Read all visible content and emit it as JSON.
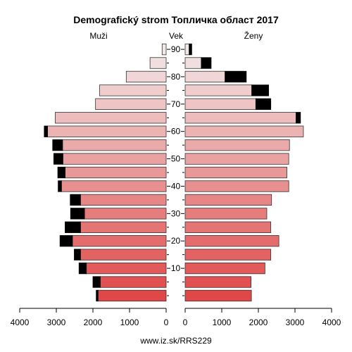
{
  "chart_data": {
    "type": "bar",
    "subtype": "population-pyramid",
    "title": "Demografický strom Топличка област 2017",
    "left_label": "Muži",
    "center_label": "Vek",
    "right_label": "Ženy",
    "source": "www.iz.sk/RRS229",
    "x_range": [
      0,
      4000
    ],
    "x_ticks": [
      4000,
      3000,
      2000,
      1000,
      0,
      1000,
      2000,
      3000,
      4000
    ],
    "age_ticks": [
      "10",
      "20",
      "30",
      "40",
      "50",
      "60",
      "70",
      "80",
      "90"
    ],
    "age_groups": [
      "0-4",
      "5-9",
      "10-14",
      "15-19",
      "20-24",
      "25-29",
      "30-34",
      "35-39",
      "40-44",
      "45-49",
      "50-54",
      "55-59",
      "60-64",
      "65-69",
      "70-74",
      "75-79",
      "80-84",
      "85-89",
      "90+"
    ],
    "series": [
      {
        "name": "Muži",
        "values": [
          1860,
          1800,
          2180,
          2340,
          2560,
          2340,
          2230,
          2340,
          2860,
          2760,
          2820,
          2830,
          3240,
          3030,
          1930,
          1820,
          1090,
          440,
          110
        ],
        "excess_values": [
          50,
          200,
          200,
          170,
          340,
          420,
          380,
          280,
          90,
          200,
          250,
          270,
          90,
          0,
          0,
          0,
          0,
          0,
          0
        ]
      },
      {
        "name": "Ženy",
        "values": [
          1810,
          1800,
          2180,
          2340,
          2560,
          2340,
          2230,
          2360,
          2830,
          2780,
          2830,
          2850,
          3230,
          3030,
          1930,
          1820,
          1090,
          440,
          110
        ],
        "excess_values": [
          0,
          0,
          0,
          0,
          0,
          0,
          0,
          0,
          0,
          0,
          0,
          0,
          0,
          120,
          410,
          460,
          580,
          270,
          70
        ]
      }
    ],
    "colors": {
      "excess": "#000000",
      "young": "#e04848",
      "old": "#f2e8e8",
      "stroke": "#333333"
    }
  }
}
